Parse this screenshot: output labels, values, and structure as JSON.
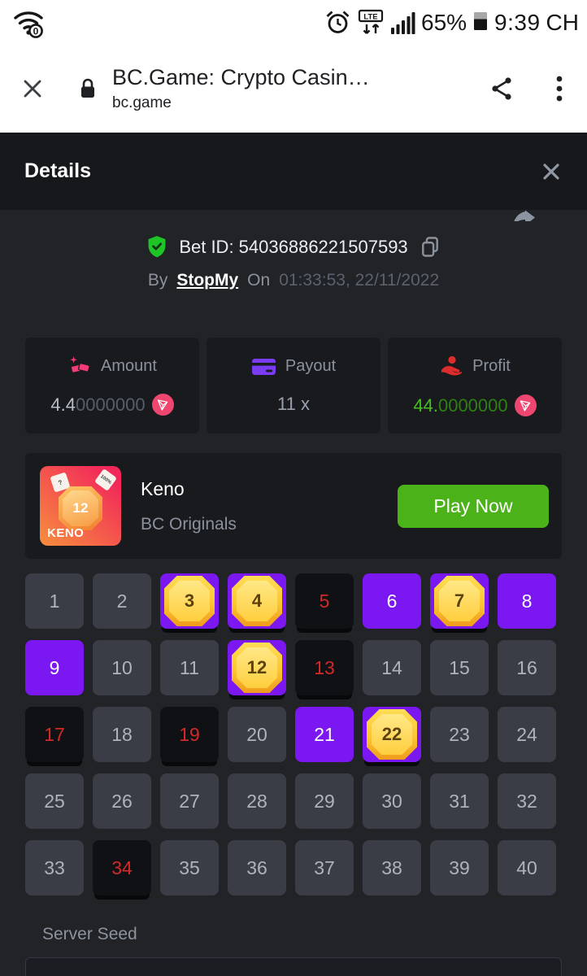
{
  "colors": {
    "accent_purple": "#7b17f0",
    "button_green": "#4bb21a",
    "miss_red": "#d32929",
    "trx_pink": "#ef4670",
    "shield_green": "#1fc426",
    "header_bg": "#17181b",
    "content_bg": "#212327"
  },
  "status_bar": {
    "time": "9:39",
    "carrier": "CH",
    "battery": "65%",
    "icons": [
      "wifi-zero-icon",
      "alarm-icon",
      "lte-icon",
      "signal-bars-icon",
      "battery-icon"
    ]
  },
  "browser": {
    "title": "BC.Game: Crypto Casin…",
    "url": "bc.game",
    "icons": [
      "close-icon",
      "lock-icon",
      "share-icon",
      "kebab-menu-icon"
    ]
  },
  "modal": {
    "title": "Details"
  },
  "bet": {
    "id_text": "Bet ID: 54036886221507593",
    "by_label": "By",
    "username": "StopMy",
    "on_label": "On",
    "datetime": "01:33:53, 22/11/2022"
  },
  "stats": {
    "amount": {
      "label": "Amount",
      "value_main": "4.4",
      "value_zeros": "0000000",
      "coin": "TRX"
    },
    "payout": {
      "label": "Payout",
      "value": "11 x"
    },
    "profit": {
      "label": "Profit",
      "value_main": "44.",
      "value_zeros": "0000000",
      "coin": "TRX"
    }
  },
  "game": {
    "title": "Keno",
    "provider": "BC Originals",
    "play_button": "Play Now",
    "thumbnail": {
      "gem_number": "12",
      "name": "KENO",
      "card_left": "?",
      "card_right": "100%"
    }
  },
  "keno": {
    "cells": [
      {
        "n": 1,
        "state": "default"
      },
      {
        "n": 2,
        "state": "default"
      },
      {
        "n": 3,
        "state": "hit"
      },
      {
        "n": 4,
        "state": "hit"
      },
      {
        "n": 5,
        "state": "miss"
      },
      {
        "n": 6,
        "state": "picked"
      },
      {
        "n": 7,
        "state": "hit"
      },
      {
        "n": 8,
        "state": "picked"
      },
      {
        "n": 9,
        "state": "picked"
      },
      {
        "n": 10,
        "state": "default"
      },
      {
        "n": 11,
        "state": "default"
      },
      {
        "n": 12,
        "state": "hit"
      },
      {
        "n": 13,
        "state": "miss"
      },
      {
        "n": 14,
        "state": "default"
      },
      {
        "n": 15,
        "state": "default"
      },
      {
        "n": 16,
        "state": "default"
      },
      {
        "n": 17,
        "state": "miss"
      },
      {
        "n": 18,
        "state": "default"
      },
      {
        "n": 19,
        "state": "miss"
      },
      {
        "n": 20,
        "state": "default"
      },
      {
        "n": 21,
        "state": "picked"
      },
      {
        "n": 22,
        "state": "hit"
      },
      {
        "n": 23,
        "state": "default"
      },
      {
        "n": 24,
        "state": "default"
      },
      {
        "n": 25,
        "state": "default"
      },
      {
        "n": 26,
        "state": "default"
      },
      {
        "n": 27,
        "state": "default"
      },
      {
        "n": 28,
        "state": "default"
      },
      {
        "n": 29,
        "state": "default"
      },
      {
        "n": 30,
        "state": "default"
      },
      {
        "n": 31,
        "state": "default"
      },
      {
        "n": 32,
        "state": "default"
      },
      {
        "n": 33,
        "state": "default"
      },
      {
        "n": 34,
        "state": "miss"
      },
      {
        "n": 35,
        "state": "default"
      },
      {
        "n": 36,
        "state": "default"
      },
      {
        "n": 37,
        "state": "default"
      },
      {
        "n": 38,
        "state": "default"
      },
      {
        "n": 39,
        "state": "default"
      },
      {
        "n": 40,
        "state": "default"
      }
    ]
  },
  "server_seed": {
    "label": "Server Seed"
  }
}
